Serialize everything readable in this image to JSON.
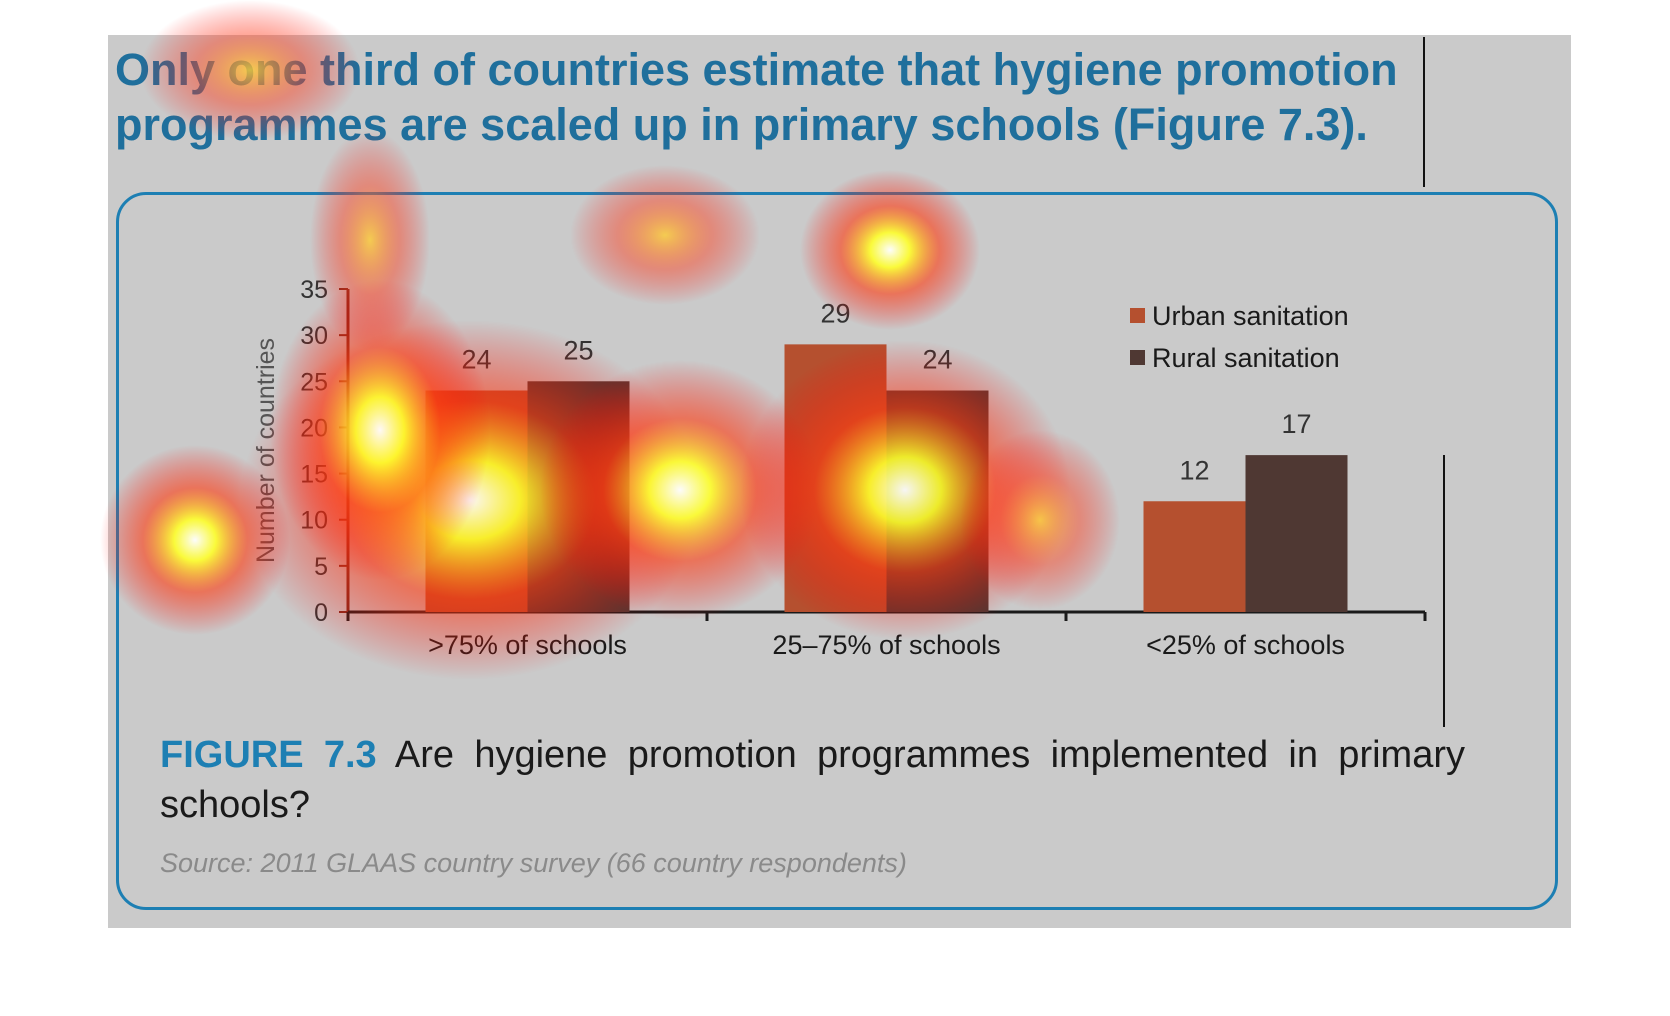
{
  "headline": "Only one third of countries estimate that hygiene promotion programmes are scaled up in primary schools (Figure 7.3).",
  "caption": {
    "label": "FIGURE 7.3",
    "text": "Are hygiene promotion programmes implemented in primary schools?"
  },
  "source": "Source: 2011 GLAAS country survey (66 country respondents)",
  "colors": {
    "headline": "#1f6f9c",
    "frame": "#1d7fb3",
    "urban": "#b5502f",
    "rural": "#4f3833",
    "axis": "#7a2a1d"
  },
  "chart_data": {
    "type": "bar",
    "categories": [
      ">75% of schools",
      "25–75% of schools",
      "<25% of schools"
    ],
    "series": [
      {
        "name": "Urban sanitation",
        "values": [
          24,
          29,
          12
        ]
      },
      {
        "name": "Rural sanitation",
        "values": [
          25,
          24,
          17
        ]
      }
    ],
    "ylabel": "Number of countries",
    "ylim": [
      0,
      35
    ],
    "yticks": [
      0,
      5,
      10,
      15,
      20,
      25,
      30,
      35
    ],
    "legend": "top-right",
    "grid": false
  }
}
